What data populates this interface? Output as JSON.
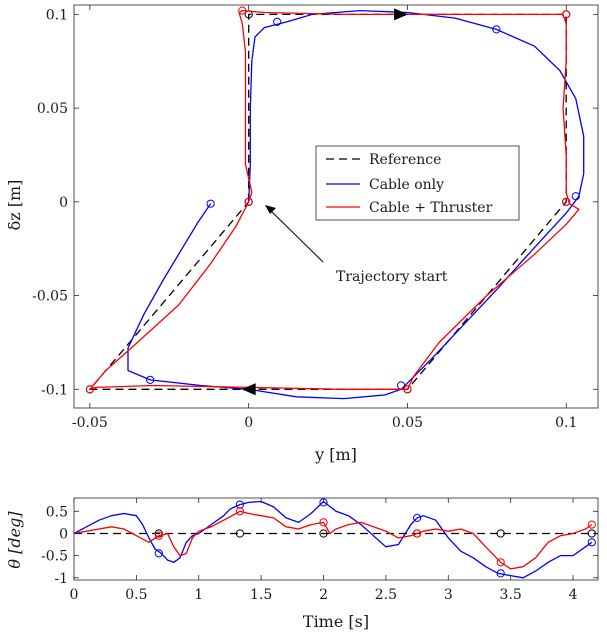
{
  "chart_data": [
    {
      "type": "line",
      "xlabel": "y [m]",
      "ylabel": "δz [m]",
      "xlim": [
        -0.055,
        0.11
      ],
      "ylim": [
        -0.11,
        0.105
      ],
      "xticks": [
        -0.05,
        0,
        0.05,
        0.1
      ],
      "xtick_labels": [
        "-0.05",
        "0",
        "0.05",
        "0.1"
      ],
      "yticks": [
        -0.1,
        -0.05,
        0,
        0.05,
        0.1
      ],
      "ytick_labels": [
        "-0.1",
        "-0.05",
        "0",
        "0.05",
        "0.1"
      ],
      "legend": {
        "placement": "center-right",
        "entries": [
          "Reference",
          "Cable only",
          "Cable + Thruster"
        ]
      },
      "annotation": "Trajectory start",
      "colors": {
        "reference": "#000000",
        "cable_only": "#0000ff",
        "cable_thruster": "#ff0000"
      },
      "series": [
        {
          "name": "Reference",
          "style": "dashed",
          "color": "#000000",
          "x": [
            0,
            0,
            0.1,
            0.1,
            0.05,
            -0.05,
            0
          ],
          "y": [
            0,
            0.1,
            0.1,
            0,
            -0.1,
            -0.1,
            0
          ],
          "markers_x": [
            0,
            0,
            0.1,
            0.1,
            0.05,
            -0.05
          ],
          "markers_y": [
            0,
            0.1,
            0.1,
            0,
            -0.1,
            -0.1
          ]
        },
        {
          "name": "Cable only",
          "style": "solid",
          "color": "#0000ff",
          "x": [
            0,
            0.0005,
            0.0005,
            0.001,
            0.002,
            0.005,
            0.012,
            0.02,
            0.035,
            0.05,
            0.065,
            0.078,
            0.09,
            0.098,
            0.103,
            0.1055,
            0.1055,
            0.104,
            0.1,
            0.094,
            0.087,
            0.078,
            0.068,
            0.058,
            0.051,
            0.048,
            0.043,
            0.03,
            0.015,
            0.0,
            -0.015,
            -0.031,
            -0.038,
            -0.038,
            -0.033,
            -0.027,
            -0.021,
            -0.016,
            -0.012
          ],
          "y": [
            0,
            0.02,
            0.05,
            0.075,
            0.088,
            0.093,
            0.096,
            0.1,
            0.102,
            0.101,
            0.098,
            0.092,
            0.083,
            0.07,
            0.055,
            0.035,
            0.015,
            0.003,
            -0.006,
            -0.017,
            -0.03,
            -0.047,
            -0.065,
            -0.083,
            -0.095,
            -0.1,
            -0.103,
            -0.105,
            -0.104,
            -0.1,
            -0.098,
            -0.095,
            -0.09,
            -0.078,
            -0.06,
            -0.042,
            -0.025,
            -0.011,
            -0.001
          ],
          "markers_x": [
            -0.012,
            0.009,
            0.078,
            0.103,
            0.048,
            -0.031,
            0
          ],
          "markers_y": [
            -0.001,
            0.096,
            0.092,
            0.003,
            -0.098,
            -0.095,
            0
          ]
        },
        {
          "name": "Cable + Thruster",
          "style": "solid",
          "color": "#ff0000",
          "x": [
            0,
            0.001,
            -0.001,
            -0.001,
            -0.001,
            -0.001,
            -0.002,
            -0.003,
            -0.002,
            0.005,
            0.03,
            0.06,
            0.09,
            0.099,
            0.1,
            0.1,
            0.099,
            0.1,
            0.1,
            0.101,
            0.104,
            0.1,
            0.09,
            0.075,
            0.06,
            0.052,
            0.05,
            0.03,
            0.0,
            -0.03,
            -0.048,
            -0.05,
            -0.049,
            -0.045,
            -0.035,
            -0.022,
            -0.012,
            -0.004,
            0
          ],
          "y": [
            0,
            0.005,
            0.02,
            0.04,
            0.06,
            0.08,
            0.095,
            0.101,
            0.102,
            0.101,
            0.1,
            0.1,
            0.1,
            0.1,
            0.095,
            0.075,
            0.05,
            0.025,
            0.005,
            -0.001,
            -0.004,
            -0.012,
            -0.028,
            -0.05,
            -0.075,
            -0.093,
            -0.1,
            -0.1,
            -0.099,
            -0.098,
            -0.099,
            -0.1,
            -0.098,
            -0.09,
            -0.075,
            -0.055,
            -0.033,
            -0.013,
            0
          ],
          "markers_x": [
            0,
            -0.002,
            0.1,
            0.1,
            0.05,
            -0.05
          ],
          "markers_y": [
            0,
            0.102,
            0.1,
            0,
            -0.1,
            -0.1
          ]
        }
      ]
    },
    {
      "type": "line",
      "xlabel": "Time [s]",
      "ylabel": "θ [deg]",
      "xlim": [
        0,
        4.2
      ],
      "ylim": [
        -1.05,
        0.8
      ],
      "xticks": [
        0,
        0.5,
        1,
        1.5,
        2,
        2.5,
        3,
        3.5,
        4
      ],
      "xtick_labels": [
        "0",
        "0.5",
        "1",
        "1.5",
        "2",
        "2.5",
        "3",
        "3.5",
        "4"
      ],
      "yticks": [
        -1,
        -0.5,
        0,
        0.5
      ],
      "ytick_labels": [
        "-1",
        "-0.5",
        "0",
        "0.5"
      ],
      "series": [
        {
          "name": "Reference",
          "style": "dashed",
          "color": "#000000",
          "x": [
            0,
            4.2
          ],
          "y": [
            0,
            0
          ],
          "markers_x": [
            0.68,
            1.33,
            2.0,
            2.75,
            3.42,
            4.15
          ],
          "markers_y": [
            0,
            0,
            0,
            0,
            0,
            0
          ]
        },
        {
          "name": "Cable only",
          "style": "solid",
          "color": "#0000ff",
          "x": [
            0,
            0.1,
            0.2,
            0.3,
            0.4,
            0.5,
            0.55,
            0.6,
            0.65,
            0.7,
            0.75,
            0.8,
            0.85,
            0.9,
            0.95,
            1.0,
            1.1,
            1.2,
            1.25,
            1.33,
            1.4,
            1.5,
            1.6,
            1.7,
            1.8,
            1.9,
            2.0,
            2.1,
            2.2,
            2.3,
            2.4,
            2.5,
            2.6,
            2.7,
            2.75,
            2.8,
            2.9,
            3.0,
            3.1,
            3.2,
            3.3,
            3.4,
            3.5,
            3.6,
            3.7,
            3.8,
            3.9,
            4.0,
            4.1,
            4.15
          ],
          "y": [
            0,
            0.15,
            0.3,
            0.4,
            0.45,
            0.4,
            0.2,
            -0.1,
            -0.35,
            -0.45,
            -0.6,
            -0.65,
            -0.55,
            -0.2,
            -0.05,
            0.0,
            0.2,
            0.4,
            0.55,
            0.65,
            0.7,
            0.72,
            0.6,
            0.35,
            0.25,
            0.45,
            0.72,
            0.5,
            0.4,
            0.2,
            -0.05,
            -0.3,
            -0.25,
            0.2,
            0.35,
            0.4,
            0.3,
            -0.1,
            -0.4,
            -0.55,
            -0.75,
            -0.9,
            -0.95,
            -1.0,
            -0.85,
            -0.65,
            -0.5,
            -0.5,
            -0.3,
            -0.2
          ],
          "markers_x": [
            0.68,
            1.33,
            2.0,
            2.75,
            3.42,
            4.15
          ],
          "markers_y": [
            -0.45,
            0.65,
            0.7,
            0.35,
            -0.9,
            -0.2
          ]
        },
        {
          "name": "Cable + Thruster",
          "style": "solid",
          "color": "#ff0000",
          "x": [
            0,
            0.1,
            0.2,
            0.3,
            0.4,
            0.5,
            0.6,
            0.68,
            0.75,
            0.8,
            0.85,
            0.9,
            0.95,
            1.0,
            1.1,
            1.2,
            1.3,
            1.33,
            1.4,
            1.5,
            1.6,
            1.7,
            1.8,
            1.9,
            2.0,
            2.05,
            2.1,
            2.2,
            2.3,
            2.4,
            2.5,
            2.6,
            2.7,
            2.75,
            2.8,
            2.9,
            3.0,
            3.1,
            3.2,
            3.3,
            3.42,
            3.5,
            3.6,
            3.7,
            3.8,
            3.9,
            4.0,
            4.1,
            4.15
          ],
          "y": [
            0,
            0.05,
            0.1,
            0.15,
            0.1,
            -0.05,
            -0.2,
            -0.05,
            0.0,
            -0.3,
            -0.5,
            -0.45,
            -0.1,
            0.05,
            0.15,
            0.3,
            0.45,
            0.5,
            0.45,
            0.4,
            0.35,
            0.15,
            0.1,
            0.2,
            0.25,
            0.0,
            0.1,
            0.2,
            0.25,
            0.15,
            0.05,
            -0.1,
            -0.05,
            0.0,
            0.05,
            0.1,
            0.05,
            0.1,
            0.0,
            -0.3,
            -0.65,
            -0.8,
            -0.75,
            -0.55,
            -0.2,
            -0.05,
            0.0,
            0.1,
            0.2
          ],
          "markers_x": [
            0.68,
            1.33,
            2.0,
            2.75,
            3.42,
            4.15
          ],
          "markers_y": [
            -0.05,
            0.5,
            0.25,
            0.0,
            -0.65,
            0.2
          ]
        }
      ]
    }
  ]
}
